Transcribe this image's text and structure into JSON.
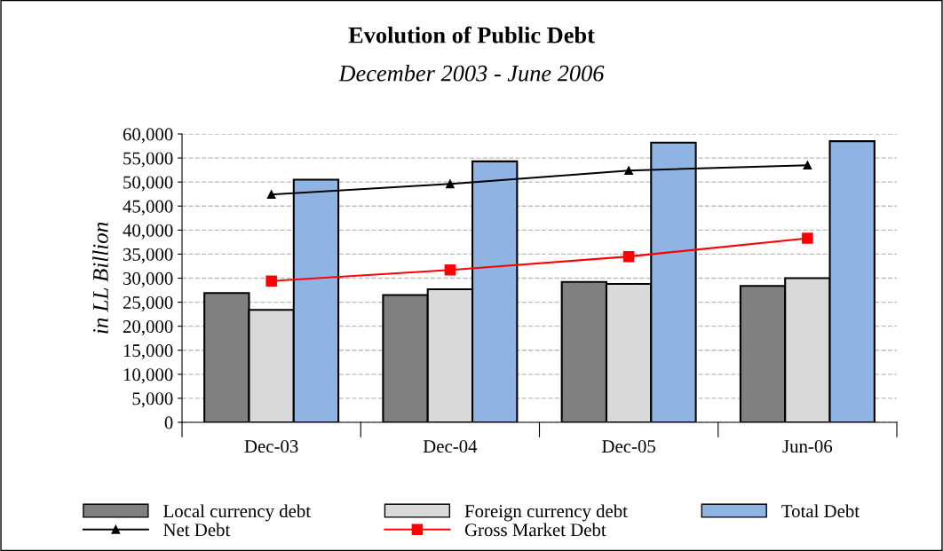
{
  "chart_data": {
    "type": "bar",
    "title": "Evolution of Public Debt",
    "subtitle": "December 2003 - June 2006",
    "ylabel": "in LL Billion",
    "categories": [
      "Dec-03",
      "Dec-04",
      "Dec-05",
      "Jun-06"
    ],
    "series": [
      {
        "name": "Local currency debt",
        "color": "#808080",
        "values": [
          26900,
          26500,
          29200,
          28400
        ]
      },
      {
        "name": "Foreign currency debt",
        "color": "#d9d9d9",
        "values": [
          23400,
          27700,
          28800,
          30000
        ]
      },
      {
        "name": "Total Debt",
        "color": "#8fb4e3",
        "values": [
          50500,
          54300,
          58200,
          58500
        ]
      },
      {
        "name": "Net Debt",
        "type": "line",
        "color": "#000000",
        "marker": "triangle",
        "values": [
          47400,
          49600,
          52400,
          53500
        ]
      },
      {
        "name": "Gross Market Debt",
        "type": "line",
        "color": "#ff0000",
        "marker": "square",
        "values": [
          29400,
          31700,
          34500,
          38300
        ]
      }
    ],
    "ylim": [
      0,
      60000
    ],
    "yticks": [
      {
        "value": 0,
        "label": "0"
      },
      {
        "value": 5000,
        "label": "5,000"
      },
      {
        "value": 10000,
        "label": "10,000"
      },
      {
        "value": 15000,
        "label": "15,000"
      },
      {
        "value": 20000,
        "label": "20,000"
      },
      {
        "value": 25000,
        "label": "25,000"
      },
      {
        "value": 30000,
        "label": "30,000"
      },
      {
        "value": 35000,
        "label": "35,000"
      },
      {
        "value": 40000,
        "label": "40,000"
      },
      {
        "value": 45000,
        "label": "45,000"
      },
      {
        "value": 50000,
        "label": "50,000"
      },
      {
        "value": 55000,
        "label": "55,000"
      },
      {
        "value": 60000,
        "label": "60,000"
      }
    ],
    "grid": "y",
    "legend": "bottom"
  }
}
